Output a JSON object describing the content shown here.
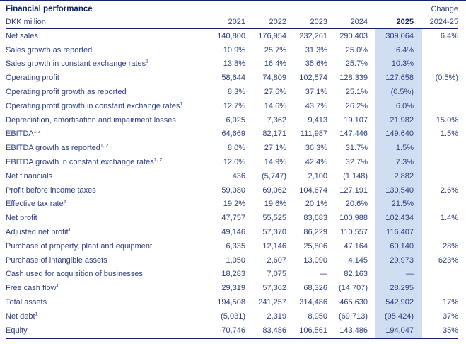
{
  "title": "Financial performance",
  "change_header_top": "Change",
  "colors": {
    "text": "#2e3f7e",
    "heading": "#0e2167",
    "highlight": "#d0def2",
    "rule": "#13266b",
    "bg": "#ffffff"
  },
  "table": {
    "unit_label": "DKK million",
    "columns": [
      "2021",
      "2022",
      "2023",
      "2024",
      "2025",
      "2024-25"
    ],
    "rows": [
      {
        "label": "Net sales",
        "y1": "140,800",
        "y2": "176,954",
        "y3": "232,261",
        "y4": "290,403",
        "y5": "309,064",
        "chg": "6.4%"
      },
      {
        "label": "Sales growth as reported",
        "y1": "10.9%",
        "y2": "25.7%",
        "y3": "31.3%",
        "y4": "25.0%",
        "y5": "6.4%",
        "chg": ""
      },
      {
        "label": "Sales growth in constant exchange rates",
        "sup": "1",
        "y1": "13.8%",
        "y2": "16.4%",
        "y3": "35.6%",
        "y4": "25.7%",
        "y5": "10.3%",
        "chg": ""
      },
      {
        "label": "Operating profit",
        "y1": "58,644",
        "y2": "74,809",
        "y3": "102,574",
        "y4": "128,339",
        "y5": "127,658",
        "chg": "(0.5%)"
      },
      {
        "label": "Operating profit growth as reported",
        "y1": "8.3%",
        "y2": "27.6%",
        "y3": "37.1%",
        "y4": "25.1%",
        "y5": "(0.5%)",
        "chg": ""
      },
      {
        "label": "Operating profit growth in constant exchange rates",
        "sup": "1",
        "y1": "12.7%",
        "y2": "14.6%",
        "y3": "43.7%",
        "y4": "26.2%",
        "y5": "6.0%",
        "chg": ""
      },
      {
        "label": "Depreciation, amortisation and impairment losses",
        "y1": "6,025",
        "y2": "7,362",
        "y3": "9,413",
        "y4": "19,107",
        "y5": "21,982",
        "chg": "15.0%"
      },
      {
        "label": "EBITDA",
        "sup": "1,2",
        "y1": "64,669",
        "y2": "82,171",
        "y3": "111,987",
        "y4": "147,446",
        "y5": "149,640",
        "chg": "1.5%"
      },
      {
        "label": "EBITDA growth as reported",
        "sup": "1, 2",
        "y1": "8.0%",
        "y2": "27.1%",
        "y3": "36.3%",
        "y4": "31.7%",
        "y5": "1.5%",
        "chg": ""
      },
      {
        "label": "EBITDA growth in constant exchange rates",
        "sup": "1, 2",
        "y1": "12.0%",
        "y2": "14.9%",
        "y3": "42.4%",
        "y4": "32.7%",
        "y5": "7.3%",
        "chg": ""
      },
      {
        "label": "Net financials",
        "y1": "436",
        "y2": "(5,747)",
        "y3": "2,100",
        "y4": "(1,148)",
        "y5": "2,882",
        "chg": ""
      },
      {
        "label": "Profit before income taxes",
        "y1": "59,080",
        "y2": "69,062",
        "y3": "104,674",
        "y4": "127,191",
        "y5": "130,540",
        "chg": "2.6%"
      },
      {
        "label": "Effective tax rate",
        "sup": "3",
        "y1": "19.2%",
        "y2": "19.6%",
        "y3": "20.1%",
        "y4": "20.6%",
        "y5": "21.5%",
        "chg": ""
      },
      {
        "label": "Net profit",
        "y1": "47,757",
        "y2": "55,525",
        "y3": "83,683",
        "y4": "100,988",
        "y5": "102,434",
        "chg": "1.4%"
      },
      {
        "label": "Adjusted net profit",
        "sup": "1",
        "y1": "49,146",
        "y2": "57,370",
        "y3": "86,229",
        "y4": "110,557",
        "y5": "116,407",
        "chg": ""
      },
      {
        "label": "Purchase of property, plant and equipment",
        "y1": "6,335",
        "y2": "12,146",
        "y3": "25,806",
        "y4": "47,164",
        "y5": "60,140",
        "chg": "28%"
      },
      {
        "label": "Purchase of intangible assets",
        "y1": "1,050",
        "y2": "2,607",
        "y3": "13,090",
        "y4": "4,145",
        "y5": "29,973",
        "chg": "623%"
      },
      {
        "label": "Cash used for acquisition of businesses",
        "y1": "18,283",
        "y2": "7,075",
        "y3": "—",
        "y4": "82,163",
        "y5": "—",
        "chg": ""
      },
      {
        "label": "Free cash flow",
        "sup": "1",
        "y1": "29,319",
        "y2": "57,362",
        "y3": "68,326",
        "y4": "(14,707)",
        "y5": "28,295",
        "chg": ""
      },
      {
        "label": "Total assets",
        "y1": "194,508",
        "y2": "241,257",
        "y3": "314,486",
        "y4": "465,630",
        "y5": "542,902",
        "chg": "17%"
      },
      {
        "label": "Net debt",
        "sup": "1",
        "y1": "(5,031)",
        "y2": "2,319",
        "y3": "8,950",
        "y4": "(69,713)",
        "y5": "(95,424)",
        "chg": "37%"
      },
      {
        "label": "Equity",
        "y1": "70,746",
        "y2": "83,486",
        "y3": "106,561",
        "y4": "143,486",
        "y5": "194,047",
        "chg": "35%"
      }
    ]
  }
}
